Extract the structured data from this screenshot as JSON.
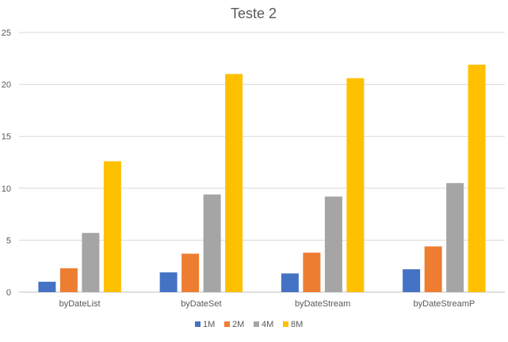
{
  "chart_data": {
    "type": "bar",
    "title": "Teste 2",
    "xlabel": "",
    "ylabel": "",
    "ylim": [
      0,
      25
    ],
    "yticks": [
      0,
      5,
      10,
      15,
      20,
      25
    ],
    "grid": true,
    "legend_position": "bottom",
    "categories": [
      "byDateList",
      "byDateSet",
      "byDateStream",
      "byDateStreamP"
    ],
    "series": [
      {
        "name": "1M",
        "color": "#4472C4",
        "values": [
          1.0,
          1.9,
          1.8,
          2.2
        ]
      },
      {
        "name": "2M",
        "color": "#ED7D31",
        "values": [
          2.3,
          3.7,
          3.8,
          4.4
        ]
      },
      {
        "name": "4M",
        "color": "#A5A5A5",
        "values": [
          5.7,
          9.4,
          9.2,
          10.5
        ]
      },
      {
        "name": "8M",
        "color": "#FFC000",
        "values": [
          12.6,
          21.0,
          20.6,
          21.9
        ]
      }
    ]
  }
}
